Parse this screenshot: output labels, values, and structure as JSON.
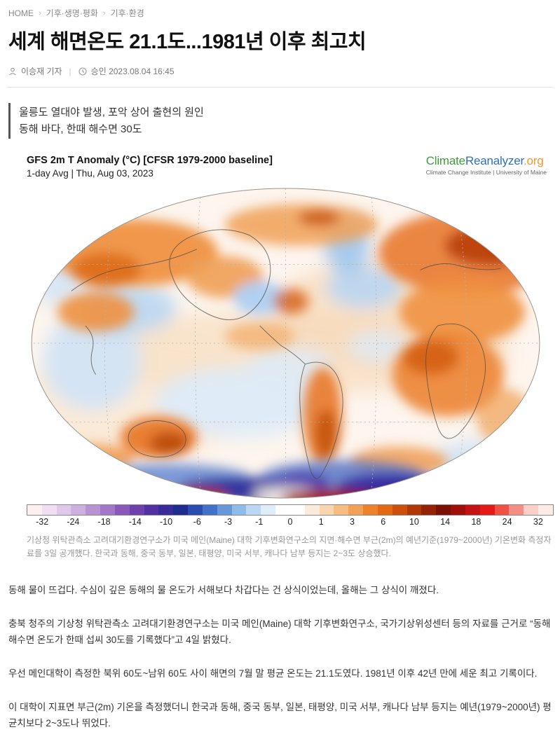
{
  "breadcrumb": {
    "separator": "›",
    "items": [
      "HOME",
      "기후·생명·평화",
      "기후·환경"
    ]
  },
  "article": {
    "title": "세계 해면온도 21.1도...1981년 이후 최고치",
    "byline": {
      "author": "이승재 기자",
      "published": "승인 2023.08.04 16:45"
    },
    "subhead_lines": [
      "울릉도 열대야 발생, 포악 상어 출현의 원인",
      "동해 바다, 한때 해수면 30도"
    ],
    "figure": {
      "map_title": "GFS 2m T Anomaly (°C) [CFSR 1979-2000 baseline]",
      "map_subtitle": "1-day Avg | Thu, Aug 03, 2023",
      "logo": {
        "part1": "Climate",
        "part2": "Reanalyzer",
        "part3": ".org",
        "color1": "#3f9b3c",
        "color2": "#2e6fb7",
        "color3": "#f0962c",
        "tagline": "Climate Change Institute | University of Maine"
      },
      "colorbar": {
        "unit": "°C anomaly",
        "tick_labels": [
          "-32",
          "-24",
          "-18",
          "-14",
          "-10",
          "-6",
          "-3",
          "-1",
          "0",
          "1",
          "3",
          "6",
          "10",
          "14",
          "18",
          "24",
          "32"
        ],
        "colors": [
          "#fbeff1",
          "#f0dff2",
          "#dfc8ea",
          "#cdafe0",
          "#b992d4",
          "#a276c8",
          "#8a58ba",
          "#6f41ad",
          "#5232a2",
          "#372c9a",
          "#1e2c90",
          "#2b4db2",
          "#4272c8",
          "#6698da",
          "#8fbbe9",
          "#bcd7f4",
          "#dfecfa",
          "#ffffff",
          "#ffffff",
          "#fcebd8",
          "#fad6ae",
          "#f7bc82",
          "#f4a055",
          "#ef8228",
          "#e36812",
          "#cc4f0c",
          "#b13708",
          "#962206",
          "#7c1004",
          "#a00f0c",
          "#c41312",
          "#e51a18",
          "#ef5145",
          "#f58f85",
          "#fbd0c8",
          "#fdece6"
        ]
      },
      "caption": "기상청 위탁관측소 고려대기환경연구소가 미국 메인(Maine) 대학 기후변화연구소의 지면·해수면 부근(2m)의 예년기준(1979~2000년) 기온변화 측정자료를 3일 공개했다. 한국과 동해, 중국 동부, 일본, 태평양, 미국 서부, 캐나다 남부 등지는 2~3도 상승했다."
    },
    "paragraphs": [
      "동해 물이 뜨겁다. 수심이 깊은 동해의 물 온도가 서해보다 차갑다는 건 상식이었는데, 올해는 그 상식이 깨졌다.",
      "충북 청주의 기상청 위탁관측소 고려대기환경연구소는 미국 메인(Maine) 대학 기후변화연구소, 국가기상위성센터 등의 자료를 근거로 “동해 해수면 온도가 한때 섭씨 30도를 기록했다”고 4일 밝혔다.",
      "우선 메인대학이 측정한 북위 60도~남위 60도 사이 해면의 7월 말 평균 온도는 21.1도였다. 1981년 이후 42년 만에 세운 최고 기록이다.",
      "이 대학이 지표면 부근(2m) 기온을 측정했더니 한국과 동해, 중국 동부, 일본, 태평양, 미국 서부, 캐나다 남부 등지는 예년(1979~2000년) 평균치보다 2~3도나 뛰었다."
    ]
  }
}
